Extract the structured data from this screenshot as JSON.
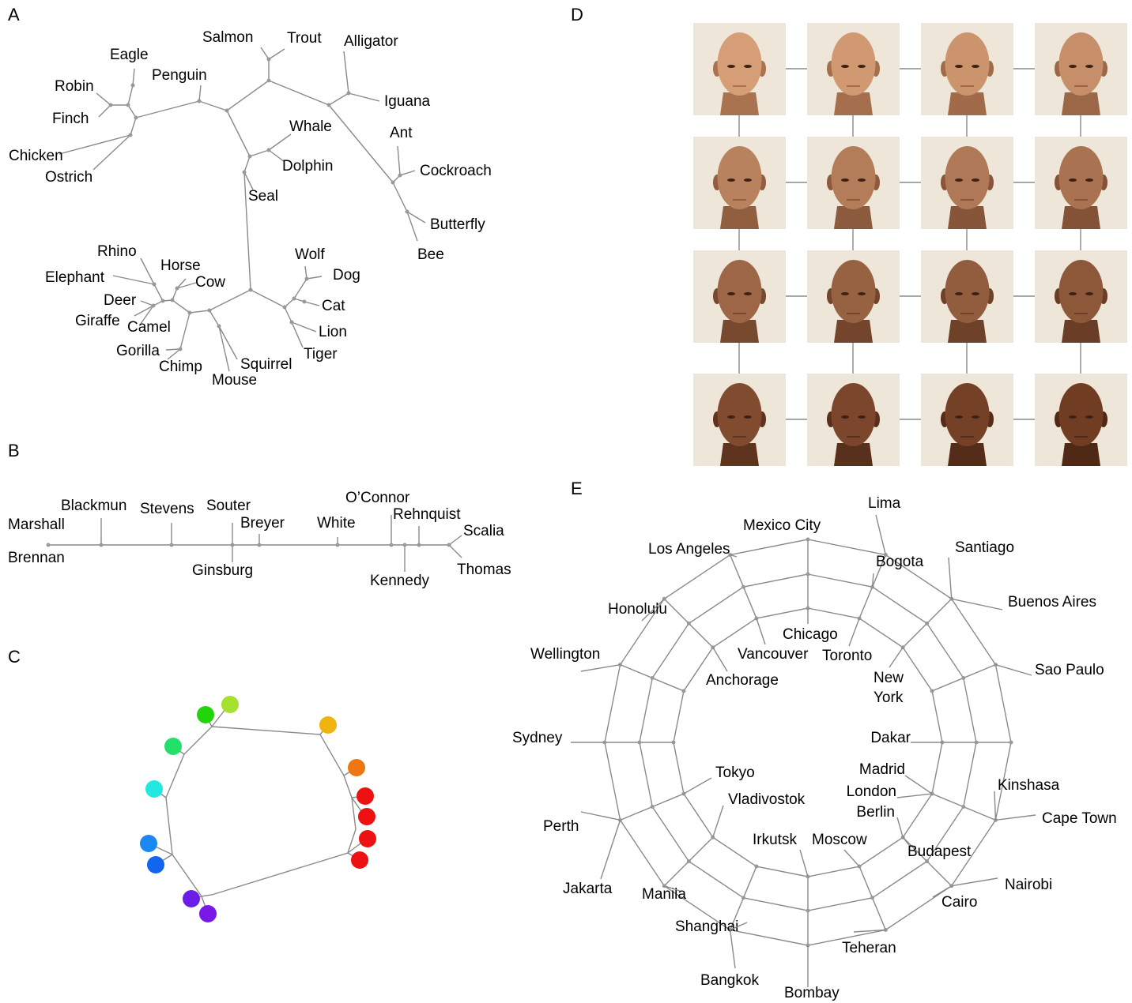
{
  "panel_a": {
    "letter": "A",
    "labels": [
      "Salmon",
      "Trout",
      "Alligator",
      "Eagle",
      "Penguin",
      "Robin",
      "Iguana",
      "Finch",
      "Whale",
      "Ant",
      "Chicken",
      "Dolphin",
      "Cockroach",
      "Ostrich",
      "Seal",
      "Butterfly",
      "Bee",
      "Rhino",
      "Wolf",
      "Horse",
      "Elephant",
      "Dog",
      "Cow",
      "Deer",
      "Cat",
      "Giraffe",
      "Camel",
      "Lion",
      "Gorilla",
      "Tiger",
      "Chimp",
      "Squirrel",
      "Mouse"
    ]
  },
  "panel_b": {
    "letter": "B",
    "labels": [
      "Marshall",
      "Brennan",
      "Blackmun",
      "Stevens",
      "Souter",
      "Ginsburg",
      "Breyer",
      "White",
      "O’Connor",
      "Rehnquist",
      "Kennedy",
      "Scalia",
      "Thomas"
    ]
  },
  "panel_c": {
    "letter": "C"
  },
  "panel_d": {
    "letter": "D"
  },
  "panel_e": {
    "letter": "E",
    "labels": [
      "Lima",
      "Mexico City",
      "Los Angeles",
      "Bogota",
      "Santiago",
      "Honolulu",
      "Buenos Aires",
      "Chicago",
      "Toronto",
      "Vancouver",
      "Wellington",
      "Anchorage",
      "Sao Paulo",
      "New York",
      "Dakar",
      "Sydney",
      "Madrid",
      "Tokyo",
      "Kinshasa",
      "London",
      "Vladivostok",
      "Cape Town",
      "Berlin",
      "Perth",
      "Irkutsk",
      "Moscow",
      "Budapest",
      "Nairobi",
      "Jakarta",
      "Manila",
      "Cairo",
      "Shanghai",
      "Teheran",
      "Bangkok",
      "Bombay"
    ]
  }
}
